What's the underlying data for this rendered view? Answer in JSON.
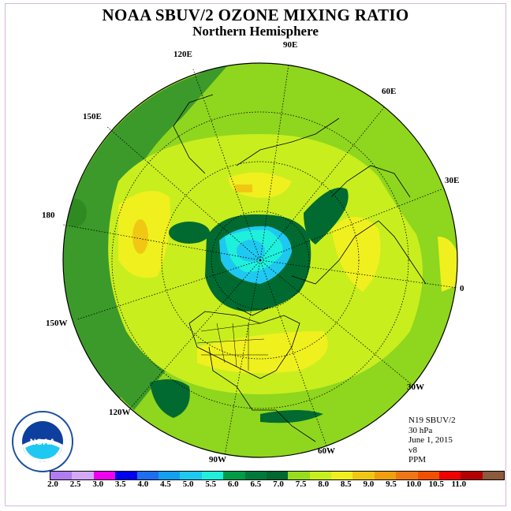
{
  "title": "NOAA SBUV/2 OZONE MIXING RATIO",
  "subtitle": "Northern Hemisphere",
  "longitude_labels": {
    "lon_90e": "90E",
    "lon_60e": "60E",
    "lon_30e": "30E",
    "lon_0": "0",
    "lon_30w": "30W",
    "lon_60w": "60W",
    "lon_90w": "90W",
    "lon_120w": "120W",
    "lon_150w": "150W",
    "lon_180": "180",
    "lon_150e": "150E",
    "lon_120e": "120E"
  },
  "info": {
    "instrument": "N19 SBUV/2",
    "pressure": "30 hPa",
    "date": "June 1, 2015",
    "version": "v8",
    "units": "PPM"
  },
  "logo_text": "NOAA",
  "colorbar": {
    "colors": [
      "#b07cf0",
      "#d4a8f8",
      "#f000f0",
      "#0000f0",
      "#1e6ef0",
      "#14a0f0",
      "#1ec8f0",
      "#1ef0dc",
      "#009c48",
      "#007a3a",
      "#006830",
      "#98dc1e",
      "#c8f01e",
      "#f0f01e",
      "#f0c814",
      "#f0a00e",
      "#f07814",
      "#f05000",
      "#f00000",
      "#b40000",
      "#8c5a3c"
    ],
    "ticks": [
      "2.0",
      "2.5",
      "3.0",
      "3.5",
      "4.0",
      "4.5",
      "5.0",
      "5.5",
      "6.0",
      "6.5",
      "7.0",
      "7.5",
      "8.0",
      "8.5",
      "9.0",
      "9.5",
      "10.0",
      "10.5",
      "11.0"
    ]
  },
  "colors": {
    "outer_band": "#3c9a2a",
    "mid_band": "#8fd61e",
    "light": "#c8ee1e",
    "yellow": "#f0f01e",
    "orange": "#f0c814",
    "dark_green": "#006a30",
    "cyan": "#1ef0dc",
    "blue": "#1ec8f0"
  }
}
